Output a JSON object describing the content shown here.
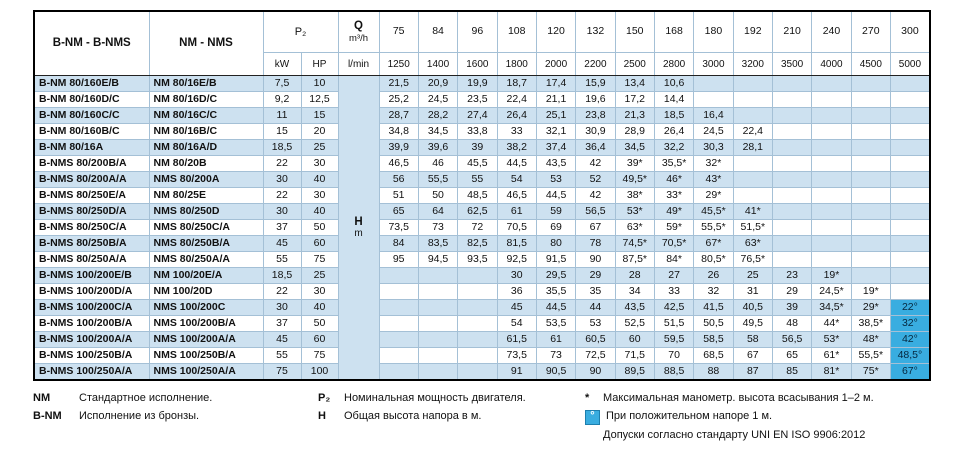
{
  "table": {
    "header": {
      "col1": "B-NM - B-NMS",
      "col2": "NM - NMS",
      "p2": "P₂",
      "kw": "kW",
      "hp": "HP",
      "q_label": "Q",
      "q_unit": "m³/h",
      "lmin_label": "l/min",
      "h_label": "H",
      "h_unit": "m",
      "flows_m3h": [
        "75",
        "84",
        "96",
        "108",
        "120",
        "132",
        "150",
        "168",
        "180",
        "192",
        "210",
        "240",
        "270",
        "300"
      ],
      "flows_lmin": [
        "1250",
        "1400",
        "1600",
        "1800",
        "2000",
        "2200",
        "2500",
        "2800",
        "3000",
        "3200",
        "3500",
        "4000",
        "4500",
        "5000"
      ]
    },
    "rows": [
      {
        "bnm": "B-NM 80/160E/B",
        "nm": "NM 80/16E/B",
        "kw": "7,5",
        "hp": "10",
        "values": [
          "21,5",
          "20,9",
          "19,9",
          "18,7",
          "17,4",
          "15,9",
          "13,4",
          "10,6",
          "",
          "",
          "",
          "",
          "",
          ""
        ]
      },
      {
        "bnm": "B-NM 80/160D/C",
        "nm": "NM 80/16D/C",
        "kw": "9,2",
        "hp": "12,5",
        "values": [
          "25,2",
          "24,5",
          "23,5",
          "22,4",
          "21,1",
          "19,6",
          "17,2",
          "14,4",
          "",
          "",
          "",
          "",
          "",
          ""
        ]
      },
      {
        "bnm": "B-NM 80/160C/C",
        "nm": "NM 80/16C/C",
        "kw": "11",
        "hp": "15",
        "values": [
          "28,7",
          "28,2",
          "27,4",
          "26,4",
          "25,1",
          "23,8",
          "21,3",
          "18,5",
          "16,4",
          "",
          "",
          "",
          "",
          ""
        ]
      },
      {
        "bnm": "B-NM 80/160B/C",
        "nm": "NM 80/16B/C",
        "kw": "15",
        "hp": "20",
        "values": [
          "34,8",
          "34,5",
          "33,8",
          "33",
          "32,1",
          "30,9",
          "28,9",
          "26,4",
          "24,5",
          "22,4",
          "",
          "",
          "",
          ""
        ]
      },
      {
        "bnm": "B-NM 80/16A",
        "nm": "NM 80/16A/D",
        "kw": "18,5",
        "hp": "25",
        "values": [
          "39,9",
          "39,6",
          "39",
          "38,2",
          "37,4",
          "36,4",
          "34,5",
          "32,2",
          "30,3",
          "28,1",
          "",
          "",
          "",
          ""
        ]
      },
      {
        "bnm": "B-NMS 80/200B/A",
        "nm": "NM 80/20B",
        "kw": "22",
        "hp": "30",
        "values": [
          "46,5",
          "46",
          "45,5",
          "44,5",
          "43,5",
          "42",
          "39*",
          "35,5*",
          "32*",
          "",
          "",
          "",
          "",
          ""
        ]
      },
      {
        "bnm": "B-NMS 80/200A/A",
        "nm": "NMS 80/200A",
        "kw": "30",
        "hp": "40",
        "values": [
          "56",
          "55,5",
          "55",
          "54",
          "53",
          "52",
          "49,5*",
          "46*",
          "43*",
          "",
          "",
          "",
          "",
          ""
        ]
      },
      {
        "bnm": "B-NMS 80/250E/A",
        "nm": "NM 80/25E",
        "kw": "22",
        "hp": "30",
        "values": [
          "51",
          "50",
          "48,5",
          "46,5",
          "44,5",
          "42",
          "38*",
          "33*",
          "29*",
          "",
          "",
          "",
          "",
          ""
        ]
      },
      {
        "bnm": "B-NMS 80/250D/A",
        "nm": "NMS 80/250D",
        "kw": "30",
        "hp": "40",
        "values": [
          "65",
          "64",
          "62,5",
          "61",
          "59",
          "56,5",
          "53*",
          "49*",
          "45,5*",
          "41*",
          "",
          "",
          "",
          ""
        ]
      },
      {
        "bnm": "B-NMS 80/250C/A",
        "nm": "NMS 80/250C/A",
        "kw": "37",
        "hp": "50",
        "values": [
          "73,5",
          "73",
          "72",
          "70,5",
          "69",
          "67",
          "63*",
          "59*",
          "55,5*",
          "51,5*",
          "",
          "",
          "",
          ""
        ]
      },
      {
        "bnm": "B-NMS 80/250B/A",
        "nm": "NMS 80/250B/A",
        "kw": "45",
        "hp": "60",
        "values": [
          "84",
          "83,5",
          "82,5",
          "81,5",
          "80",
          "78",
          "74,5*",
          "70,5*",
          "67*",
          "63*",
          "",
          "",
          "",
          ""
        ]
      },
      {
        "bnm": "B-NMS 80/250A/A",
        "nm": "NMS 80/250A/A",
        "kw": "55",
        "hp": "75",
        "values": [
          "95",
          "94,5",
          "93,5",
          "92,5",
          "91,5",
          "90",
          "87,5*",
          "84*",
          "80,5*",
          "76,5*",
          "",
          "",
          "",
          ""
        ]
      },
      {
        "bnm": "B-NMS 100/200E/B",
        "nm": "NM 100/20E/A",
        "kw": "18,5",
        "hp": "25",
        "values": [
          "",
          "",
          "",
          "30",
          "29,5",
          "29",
          "28",
          "27",
          "26",
          "25",
          "23",
          "19*",
          "",
          ""
        ]
      },
      {
        "bnm": "B-NMS 100/200D/A",
        "nm": "NM 100/20D",
        "kw": "22",
        "hp": "30",
        "values": [
          "",
          "",
          "",
          "36",
          "35,5",
          "35",
          "34",
          "33",
          "32",
          "31",
          "29",
          "24,5*",
          "19*",
          ""
        ]
      },
      {
        "bnm": "B-NMS 100/200C/A",
        "nm": "NMS 100/200C",
        "kw": "30",
        "hp": "40",
        "values": [
          "",
          "",
          "",
          "45",
          "44,5",
          "44",
          "43,5",
          "42,5",
          "41,5",
          "40,5",
          "39",
          "34,5*",
          "29*",
          "22°"
        ]
      },
      {
        "bnm": "B-NMS 100/200B/A",
        "nm": "NMS 100/200B/A",
        "kw": "37",
        "hp": "50",
        "values": [
          "",
          "",
          "",
          "54",
          "53,5",
          "53",
          "52,5",
          "51,5",
          "50,5",
          "49,5",
          "48",
          "44*",
          "38,5*",
          "32°"
        ]
      },
      {
        "bnm": "B-NMS 100/200A/A",
        "nm": "NMS 100/200A/A",
        "kw": "45",
        "hp": "60",
        "values": [
          "",
          "",
          "",
          "61,5",
          "61",
          "60,5",
          "60",
          "59,5",
          "58,5",
          "58",
          "56,5",
          "53*",
          "48*",
          "42°"
        ]
      },
      {
        "bnm": "B-NMS 100/250B/A",
        "nm": "NMS 100/250B/A",
        "kw": "55",
        "hp": "75",
        "values": [
          "",
          "",
          "",
          "73,5",
          "73",
          "72,5",
          "71,5",
          "70",
          "68,5",
          "67",
          "65",
          "61*",
          "55,5*",
          "48,5°"
        ]
      },
      {
        "bnm": "B-NMS 100/250A/A",
        "nm": "NMS 100/250A/A",
        "kw": "75",
        "hp": "100",
        "values": [
          "",
          "",
          "",
          "91",
          "90,5",
          "90",
          "89,5",
          "88,5",
          "88",
          "87",
          "85",
          "81*",
          "75*",
          "67°"
        ]
      }
    ]
  },
  "legend": {
    "nm_term": "NM",
    "nm_desc": "Стандартное исполнение.",
    "bnm_term": "B-NM",
    "bnm_desc": "Исполнение из бронзы.",
    "p2_term": "P₂",
    "p2_desc": "Номинальная мощность двигателя.",
    "h_term": "H",
    "h_desc": "Общая высота напора в м.",
    "star_term": "*",
    "star_desc": "Максимальная манометр. высота всасывания 1–2 м.",
    "deg_term": "°",
    "deg_desc": "При положительном напоре 1 м.",
    "tolerance": "Допуски согласно стандарту UNI EN ISO 9906:2012"
  },
  "colors": {
    "stripe_blue": "#cde1f0",
    "accent_cyan": "#39ade0"
  }
}
